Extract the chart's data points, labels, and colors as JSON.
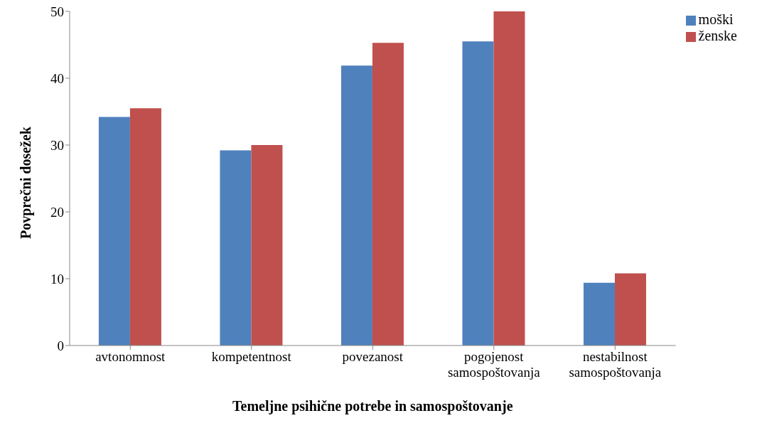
{
  "chart_data": {
    "type": "bar",
    "xlabel": "Temeljne psihične potrebe in samospoštovanje",
    "ylabel": "Povprečni dosežek",
    "categories": [
      "avtonomnost",
      "kompetentnost",
      "povezanost",
      "pogojenost samospoštovanja",
      "nestabilnost samospoštovanja"
    ],
    "series": [
      {
        "name": "moški",
        "color": "#4f81bd",
        "values": [
          34.2,
          29.2,
          41.9,
          45.5,
          9.4
        ]
      },
      {
        "name": "ženske",
        "color": "#c0504d",
        "values": [
          35.5,
          30.0,
          45.3,
          50.0,
          10.8
        ]
      }
    ],
    "ylim": [
      0,
      50
    ],
    "yticks": [
      0,
      10,
      20,
      30,
      40,
      50
    ],
    "grid": false,
    "legend": "top right"
  }
}
